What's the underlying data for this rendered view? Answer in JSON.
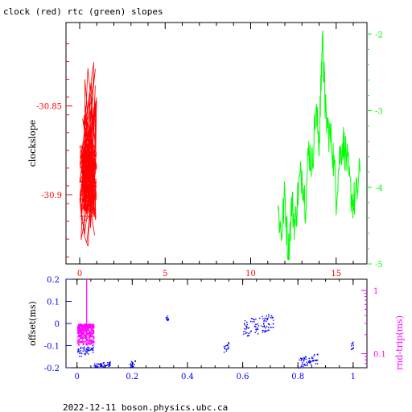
{
  "title": "clock (red) rtc (green) slopes",
  "footer": "2022-12-11 boson.physics.ubc.ca",
  "colors": {
    "clock": "#ff0000",
    "rtc": "#00ff00",
    "offset": "#0000ff",
    "rndtrip": "#ff00ff",
    "axis": "#000000"
  },
  "chart_data": [
    {
      "type": "line",
      "xlabel": "",
      "ylabel": "clockslope",
      "xlim": [
        -0.8,
        16.8
      ],
      "ylim": [
        -30.939,
        -30.803
      ],
      "y2lim": [
        -5.0,
        -1.85
      ],
      "x_ticks": [
        "0",
        "5",
        "10",
        "15"
      ],
      "y_ticks": [
        "-30.85",
        "-30.9"
      ],
      "y2_ticks": [
        "-2",
        "-3",
        "-4",
        "-5"
      ],
      "series": [
        {
          "name": "clock",
          "axis": "left",
          "x_range": [
            0.0,
            1.0
          ],
          "y_range": [
            -30.935,
            -30.825
          ],
          "typical_band": [
            -30.912,
            -30.872
          ]
        },
        {
          "name": "rtc",
          "axis": "right",
          "points": [
            [
              11.6,
              -4.3
            ],
            [
              11.8,
              -4.6
            ],
            [
              12.0,
              -4.1
            ],
            [
              12.2,
              -4.9
            ],
            [
              12.4,
              -4.2
            ],
            [
              12.6,
              -4.5
            ],
            [
              12.8,
              -4.0
            ],
            [
              13.0,
              -3.8
            ],
            [
              13.2,
              -4.2
            ],
            [
              13.4,
              -3.5
            ],
            [
              13.6,
              -3.7
            ],
            [
              13.8,
              -3.0
            ],
            [
              14.0,
              -3.4
            ],
            [
              14.1,
              -2.8
            ],
            [
              14.2,
              -2.0
            ],
            [
              14.3,
              -2.6
            ],
            [
              14.4,
              -3.1
            ],
            [
              14.6,
              -3.3
            ],
            [
              14.8,
              -3.5
            ],
            [
              15.0,
              -4.1
            ],
            [
              15.2,
              -3.6
            ],
            [
              15.4,
              -3.4
            ],
            [
              15.6,
              -3.6
            ],
            [
              15.8,
              -4.0
            ],
            [
              16.0,
              -4.2
            ],
            [
              16.2,
              -4.1
            ],
            [
              16.4,
              -3.8
            ]
          ]
        }
      ]
    },
    {
      "type": "scatter",
      "xlabel": "",
      "ylabel": "offset(ms)",
      "y2label": "rnd-trip(ms)",
      "xlim": [
        -0.04,
        1.05
      ],
      "ylim": [
        -0.2,
        0.2
      ],
      "y2_scale": "log",
      "x_ticks": [
        "0",
        "0.2",
        "0.4",
        "0.6",
        "0.8",
        "1"
      ],
      "y_ticks": [
        "0.2",
        "0.1",
        "0",
        "-0.1",
        "-0.2"
      ],
      "y2_ticks": [
        "1",
        "0.1"
      ],
      "series": [
        {
          "name": "offset",
          "clusters": [
            {
              "x": [
                0.0,
                0.06
              ],
              "y": [
                -0.15,
                -0.09
              ]
            },
            {
              "x": [
                0.06,
                0.12
              ],
              "y": [
                -0.2,
                -0.17
              ]
            },
            {
              "x": [
                0.19,
                0.21
              ],
              "y": [
                -0.2,
                -0.16
              ]
            },
            {
              "x": [
                0.32,
                0.33
              ],
              "y": [
                0.01,
                0.04
              ]
            },
            {
              "x": [
                0.53,
                0.55
              ],
              "y": [
                -0.13,
                -0.08
              ]
            },
            {
              "x": [
                0.6,
                0.71
              ],
              "y": [
                -0.06,
                0.05
              ]
            },
            {
              "x": [
                0.8,
                0.87
              ],
              "y": [
                -0.2,
                -0.13
              ]
            },
            {
              "x": [
                0.99,
                1.0
              ],
              "y": [
                -0.12,
                -0.08
              ]
            }
          ]
        },
        {
          "name": "rnd-trip",
          "clusters": [
            {
              "x": [
                0.0,
                0.06
              ],
              "y": [
                0.14,
                0.3
              ]
            }
          ],
          "spike": {
            "x": 0.035,
            "y": 1.5
          }
        }
      ]
    }
  ]
}
